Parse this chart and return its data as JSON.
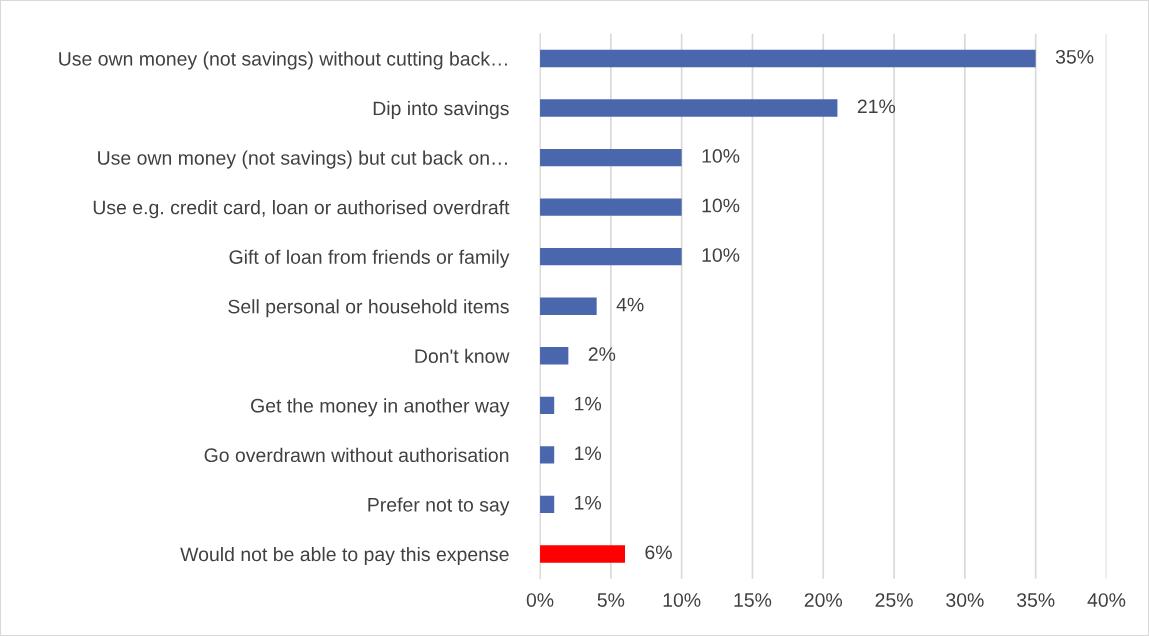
{
  "chart_data": {
    "type": "bar",
    "orientation": "horizontal",
    "categories": [
      "Use own money (not savings) without cutting back…",
      "Dip into savings",
      "Use own money (not savings) but cut back on…",
      "Use e.g. credit card, loan or authorised overdraft",
      "Gift of loan from friends or family",
      "Sell personal or household items",
      "Don't know",
      "Get the money in another way",
      "Go overdrawn without authorisation",
      "Prefer not to say",
      "Would not be able to pay this expense"
    ],
    "values": [
      35,
      21,
      10,
      10,
      10,
      4,
      2,
      1,
      1,
      1,
      6
    ],
    "colors": [
      "#4a66ac",
      "#4a66ac",
      "#4a66ac",
      "#4a66ac",
      "#4a66ac",
      "#4a66ac",
      "#4a66ac",
      "#4a66ac",
      "#4a66ac",
      "#4a66ac",
      "#ff0000"
    ],
    "value_labels": [
      "35%",
      "21%",
      "10%",
      "10%",
      "10%",
      "4%",
      "2%",
      "1%",
      "1%",
      "1%",
      "6%"
    ],
    "xlim": [
      0,
      40
    ],
    "xticks": [
      {
        "value": 0,
        "label": "0%"
      },
      {
        "value": 5,
        "label": "5%"
      },
      {
        "value": 10,
        "label": "10%"
      },
      {
        "value": 15,
        "label": "15%"
      },
      {
        "value": 20,
        "label": "20%"
      },
      {
        "value": 25,
        "label": "25%"
      },
      {
        "value": 30,
        "label": "30%"
      },
      {
        "value": 35,
        "label": "35%"
      },
      {
        "value": 40,
        "label": "40%"
      }
    ],
    "grid": "x",
    "legend": false
  }
}
